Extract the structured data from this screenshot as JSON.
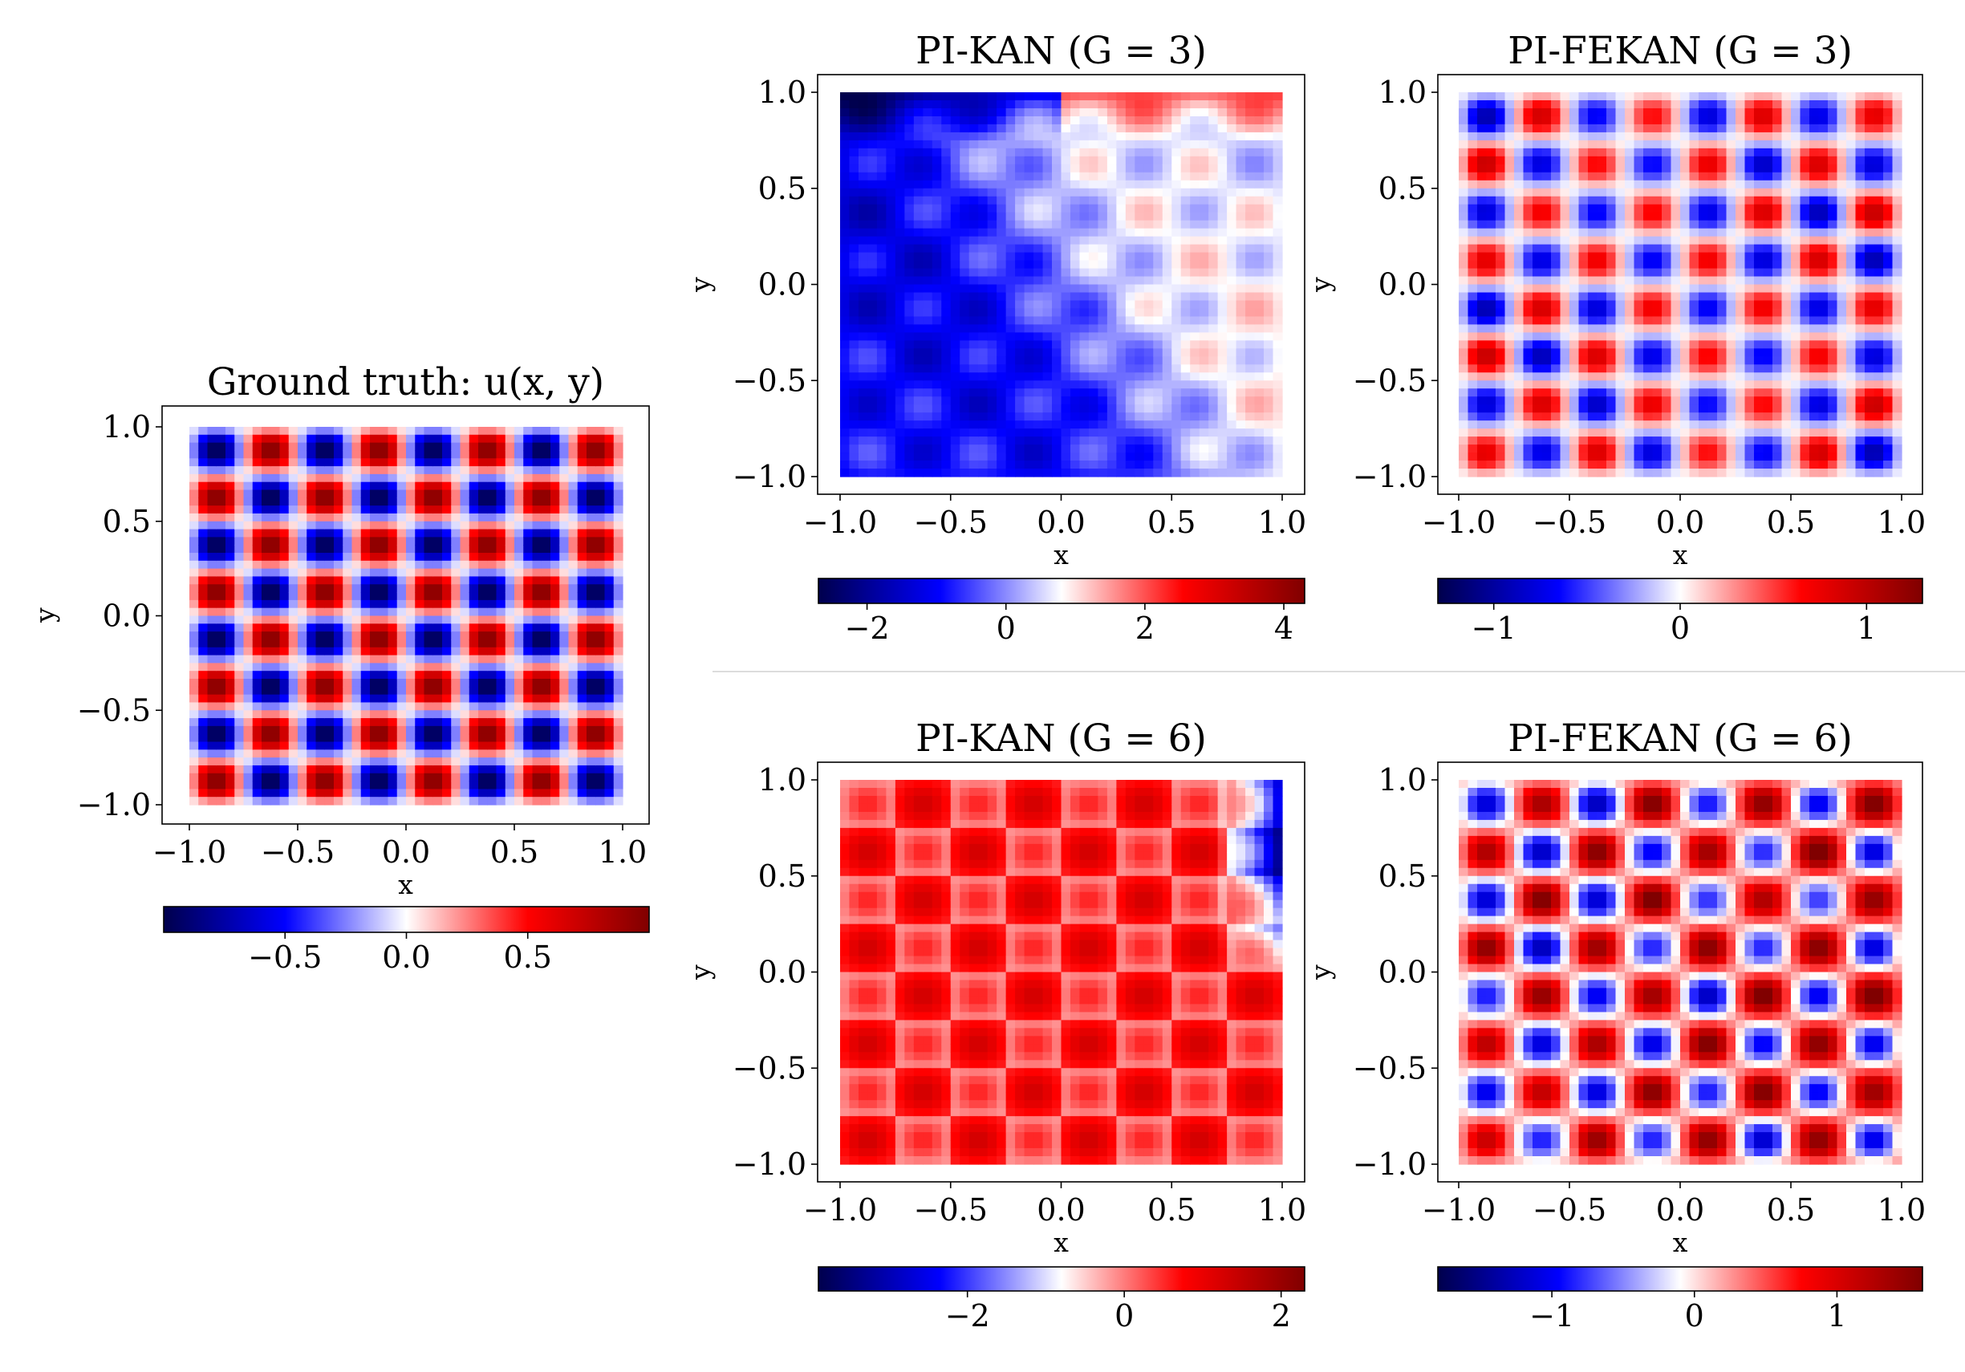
{
  "chart_data": [
    {
      "id": "gt",
      "type": "heatmap",
      "title": "Ground truth: u(x, y)",
      "xlabel": "x",
      "ylabel": "y",
      "xlim": [
        -1.0,
        1.0
      ],
      "ylim": [
        -1.0,
        1.0
      ],
      "xticks": [
        -1.0,
        -0.5,
        0.0,
        0.5,
        1.0
      ],
      "yticks": [
        -1.0,
        -0.5,
        0.0,
        0.5,
        1.0
      ],
      "tick_labels_x": [
        "−1.0",
        "−0.5",
        "0.0",
        "0.5",
        "1.0"
      ],
      "tick_labels_y": [
        "−1.0",
        "−0.5",
        "0.0",
        "0.5",
        "1.0"
      ],
      "cells_grid": 8,
      "function": "sin(4πx)·sin(4πy)",
      "colorbar": {
        "cmap": "seismic",
        "range": [
          -1.0,
          1.0
        ],
        "ticks": [
          -0.5,
          0.0,
          0.5
        ],
        "tick_labels": [
          "−0.5",
          "0.0",
          "0.5"
        ]
      }
    },
    {
      "id": "kan3",
      "type": "heatmap",
      "title": "PI-KAN (G = 3)",
      "xlabel": "x",
      "ylabel": "y",
      "xlim": [
        -1.0,
        1.0
      ],
      "ylim": [
        -1.0,
        1.0
      ],
      "xticks": [
        -1.0,
        -0.5,
        0.0,
        0.5,
        1.0
      ],
      "yticks": [
        -1.0,
        -0.5,
        0.0,
        0.5,
        1.0
      ],
      "tick_labels_x": [
        "−1.0",
        "−0.5",
        "0.0",
        "0.5",
        "1.0"
      ],
      "tick_labels_y": [
        "−1.0",
        "−0.5",
        "0.0",
        "0.5",
        "1.0"
      ],
      "cells_grid": 8,
      "colorbar": {
        "cmap": "seismic",
        "range": [
          -2.7,
          4.3
        ],
        "ticks": [
          -2,
          0,
          2,
          4
        ],
        "tick_labels": [
          "−2",
          "0",
          "2",
          "4"
        ]
      }
    },
    {
      "id": "fekan3",
      "type": "heatmap",
      "title": "PI-FEKAN (G = 3)",
      "xlabel": "x",
      "ylabel": "y",
      "xlim": [
        -1.0,
        1.0
      ],
      "ylim": [
        -1.0,
        1.0
      ],
      "xticks": [
        -1.0,
        -0.5,
        0.0,
        0.5,
        1.0
      ],
      "yticks": [
        -1.0,
        -0.5,
        0.0,
        0.5,
        1.0
      ],
      "tick_labels_x": [
        "−1.0",
        "−0.5",
        "0.0",
        "0.5",
        "1.0"
      ],
      "tick_labels_y": [
        "−1.0",
        "−0.5",
        "0.0",
        "0.5",
        "1.0"
      ],
      "cells_grid": 8,
      "colorbar": {
        "cmap": "seismic",
        "range": [
          -1.3,
          1.3
        ],
        "ticks": [
          -1,
          0,
          1
        ],
        "tick_labels": [
          "−1",
          "0",
          "1"
        ]
      }
    },
    {
      "id": "kan6",
      "type": "heatmap",
      "title": "PI-KAN (G = 6)",
      "xlabel": "x",
      "ylabel": "y",
      "xlim": [
        -1.0,
        1.0
      ],
      "ylim": [
        -1.0,
        1.0
      ],
      "xticks": [
        -1.0,
        -0.5,
        0.0,
        0.5,
        1.0
      ],
      "yticks": [
        -1.0,
        -0.5,
        0.0,
        0.5,
        1.0
      ],
      "tick_labels_x": [
        "−1.0",
        "−0.5",
        "0.0",
        "0.5",
        "1.0"
      ],
      "tick_labels_y": [
        "−1.0",
        "−0.5",
        "0.0",
        "0.5",
        "1.0"
      ],
      "cells_grid": 8,
      "colorbar": {
        "cmap": "seismic",
        "range": [
          -3.9,
          2.3
        ],
        "ticks": [
          -2,
          0,
          2
        ],
        "tick_labels": [
          "−2",
          "0",
          "2"
        ]
      }
    },
    {
      "id": "fekan6",
      "type": "heatmap",
      "title": "PI-FEKAN (G = 6)",
      "xlabel": "x",
      "ylabel": "y",
      "xlim": [
        -1.0,
        1.0
      ],
      "ylim": [
        -1.0,
        1.0
      ],
      "xticks": [
        -1.0,
        -0.5,
        0.0,
        0.5,
        1.0
      ],
      "yticks": [
        -1.0,
        -0.5,
        0.0,
        0.5,
        1.0
      ],
      "tick_labels_x": [
        "−1.0",
        "−0.5",
        "0.0",
        "0.5",
        "1.0"
      ],
      "tick_labels_y": [
        "−1.0",
        "−0.5",
        "0.0",
        "0.5",
        "1.0"
      ],
      "cells_grid": 8,
      "colorbar": {
        "cmap": "seismic",
        "range": [
          -1.8,
          1.6
        ],
        "ticks": [
          -1,
          0,
          1
        ],
        "tick_labels": [
          "−1",
          "0",
          "1"
        ]
      }
    }
  ]
}
